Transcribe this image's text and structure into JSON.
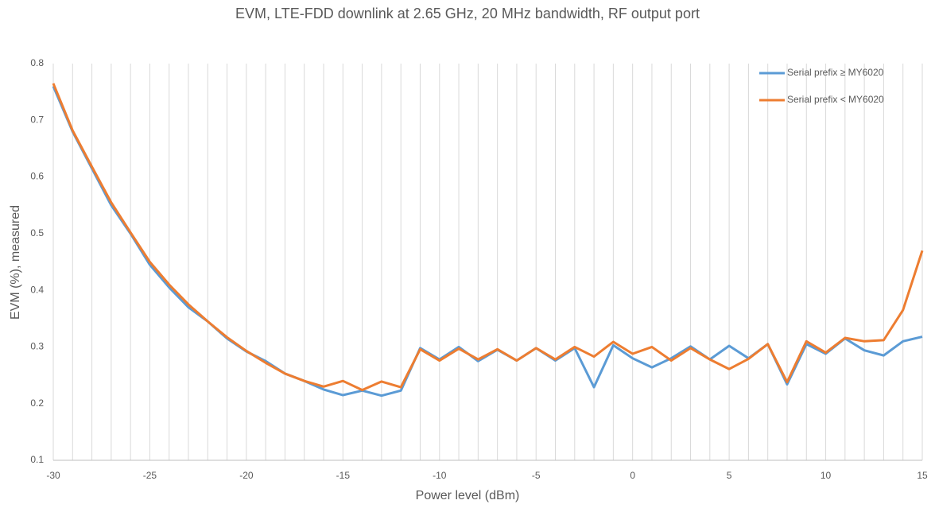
{
  "chart_data": {
    "type": "line",
    "title": "EVM, LTE-FDD downlink at 2.65 GHz, 20 MHz bandwidth, RF output port",
    "x_label": "Power level (dBm)",
    "y_label": "EVM (%), measured",
    "x": [
      -30,
      -29,
      -28,
      -27,
      -26,
      -25,
      -24,
      -23,
      -22,
      -21,
      -20,
      -19,
      -18,
      -17,
      -16,
      -15,
      -14,
      -13,
      -12,
      -11,
      -10,
      -9,
      -8,
      -7,
      -6,
      -5,
      -4,
      -3,
      -2,
      -1,
      0,
      1,
      2,
      3,
      4,
      5,
      6,
      7,
      8,
      9,
      10,
      11,
      12,
      13,
      14,
      15
    ],
    "series": [
      {
        "name": "Serial prefix ≥ MY6020",
        "color": "#5b9bd5",
        "values": [
          0.76,
          0.68,
          0.615,
          0.55,
          0.5,
          0.445,
          0.405,
          0.37,
          0.345,
          0.315,
          0.292,
          0.275,
          0.253,
          0.24,
          0.225,
          0.215,
          0.223,
          0.214,
          0.223,
          0.298,
          0.278,
          0.3,
          0.275,
          0.295,
          0.276,
          0.298,
          0.276,
          0.298,
          0.229,
          0.303,
          0.28,
          0.264,
          0.28,
          0.301,
          0.278,
          0.302,
          0.28,
          0.305,
          0.234,
          0.305,
          0.288,
          0.315,
          0.294,
          0.285,
          0.31,
          0.318
        ]
      },
      {
        "name": "Serial prefix < MY6020",
        "color": "#ed7d31",
        "values": [
          0.765,
          0.682,
          0.618,
          0.555,
          0.502,
          0.45,
          0.41,
          0.375,
          0.345,
          0.317,
          0.293,
          0.272,
          0.253,
          0.24,
          0.23,
          0.24,
          0.224,
          0.239,
          0.229,
          0.296,
          0.276,
          0.297,
          0.278,
          0.296,
          0.276,
          0.298,
          0.278,
          0.3,
          0.283,
          0.309,
          0.288,
          0.3,
          0.276,
          0.298,
          0.278,
          0.261,
          0.279,
          0.305,
          0.238,
          0.31,
          0.29,
          0.316,
          0.31,
          0.312,
          0.365,
          0.47
        ]
      }
    ],
    "xlim": [
      -30,
      15
    ],
    "xticks": [
      -30,
      -25,
      -20,
      -15,
      -10,
      -5,
      0,
      5,
      10,
      15
    ],
    "ylim": [
      0.1,
      0.8
    ],
    "yticks": [
      0.1,
      0.2,
      0.3,
      0.4,
      0.5,
      0.6,
      0.7,
      0.8
    ],
    "grid": true,
    "legend": "upper right"
  }
}
